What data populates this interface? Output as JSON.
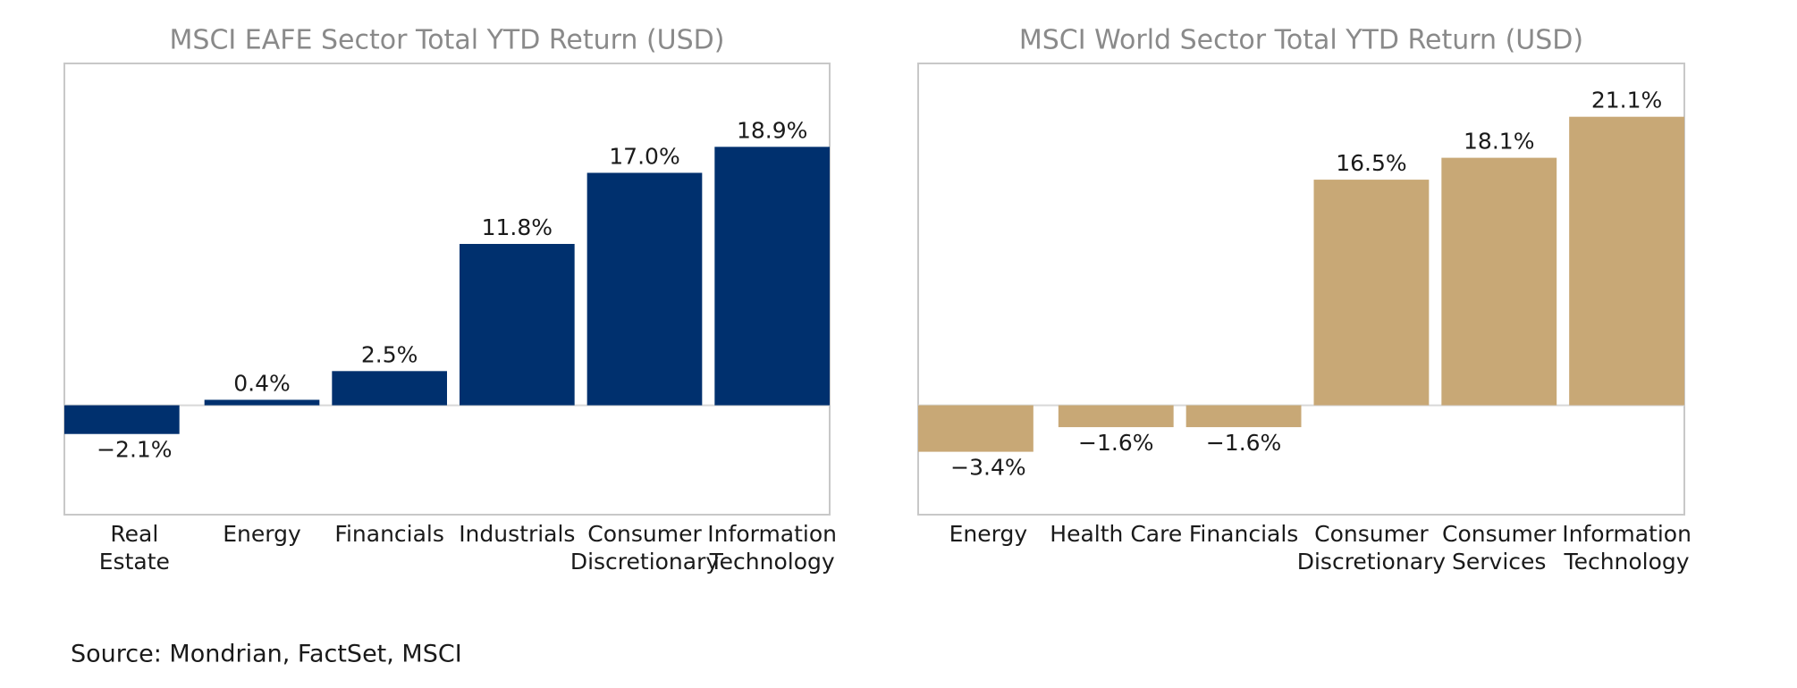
{
  "chart_data": [
    {
      "type": "bar",
      "title": "MSCI EAFE Sector Total YTD Return (USD)",
      "categories": [
        "Real\nEstate",
        "Energy",
        "Financials",
        "Industrials",
        "Consumer\nDiscretionary",
        "Information\nTechnology"
      ],
      "values": [
        -2.1,
        0.4,
        2.5,
        11.8,
        17.0,
        18.9
      ],
      "value_labels": [
        "−2.1%",
        "0.4%",
        "2.5%",
        "11.8%",
        "17.0%",
        "18.9%"
      ],
      "color": "#00306e",
      "ylim": [
        -8,
        25
      ]
    },
    {
      "type": "bar",
      "title": "MSCI World Sector Total YTD Return (USD)",
      "categories": [
        "Energy",
        "Health Care",
        "Financials",
        "Consumer\nDiscretionary",
        "Consumer\nServices",
        "Information\nTechnology"
      ],
      "values": [
        -3.4,
        -1.6,
        -1.6,
        16.5,
        18.1,
        21.1
      ],
      "value_labels": [
        "−3.4%",
        "−1.6%",
        "−1.6%",
        "16.5%",
        "18.1%",
        "21.1%"
      ],
      "color": "#c8a876",
      "ylim": [
        -8,
        25
      ]
    }
  ],
  "source": "Source: Mondrian, FactSet, MSCI"
}
